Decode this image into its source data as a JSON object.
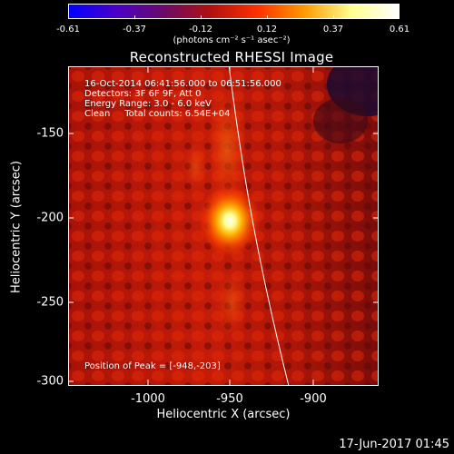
{
  "colorbar": {
    "ticks": [
      "-0.61",
      "-0.37",
      "-0.12",
      "0.12",
      "0.37",
      "0.61"
    ],
    "units_label": "(photons cm⁻² s⁻¹ asec⁻²)",
    "colors": [
      "#0000ff",
      "#4a00c8",
      "#6a0a6a",
      "#b01010",
      "#ff3000",
      "#ff9a00",
      "#ffff90",
      "#ffffff"
    ]
  },
  "title": "Reconstructed RHESSI Image",
  "info": {
    "time_range": "16-Oct-2014 06:41:56.000 to 06:51:56.000",
    "detectors": "Detectors: 3F 6F 9F, Att 0",
    "energy": "Energy Range: 3.0 - 6.0 keV",
    "clean": "Clean     Total counts: 6.54E+04",
    "peak": "Position of Peak = [-948,-203]"
  },
  "axes": {
    "ylabel": "Heliocentric Y (arcsec)",
    "xlabel": "Heliocentric X (arcsec)",
    "yticks": [
      "-150",
      "-200",
      "-250",
      "-300"
    ],
    "xticks": [
      "-1000",
      "-950",
      "-900"
    ],
    "xrange": [
      -1048,
      -860
    ],
    "yrange": [
      -303,
      -112
    ]
  },
  "peak_position": [
    -948,
    -203
  ],
  "date_stamp": "17-Jun-2017 01:45"
}
